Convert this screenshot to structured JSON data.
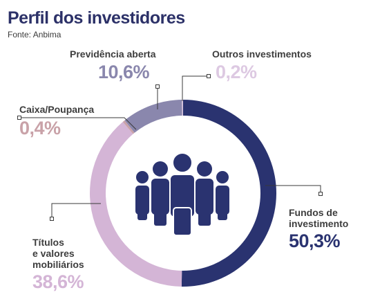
{
  "title": "Perfil dos investidores",
  "source": "Fonte: Anbima",
  "chart_data": {
    "type": "pie",
    "donut": true,
    "slices": [
      {
        "name": "Fundos de investimento",
        "label_lines": [
          "Fundos de",
          "investimento"
        ],
        "value": 50.3,
        "display": "50,3%",
        "color": "#2a3370"
      },
      {
        "name": "Títulos e valores mobiliários",
        "label_lines": [
          "Títulos",
          "e valores",
          "mobiliários"
        ],
        "value": 38.6,
        "display": "38,6%",
        "color": "#d4b5d6"
      },
      {
        "name": "Caixa/Poupança",
        "label_lines": [
          "Caixa/Poupança"
        ],
        "value": 0.4,
        "display": "0,4%",
        "color": "#c9a2a8"
      },
      {
        "name": "Previdência aberta",
        "label_lines": [
          "Previdência aberta"
        ],
        "value": 10.6,
        "display": "10,6%",
        "color": "#8a87ad"
      },
      {
        "name": "Outros investimentos",
        "label_lines": [
          "Outros investimentos"
        ],
        "value": 0.2,
        "display": "0,2%",
        "color": "#ddc9e2"
      }
    ],
    "icon": "people-group-icon"
  }
}
